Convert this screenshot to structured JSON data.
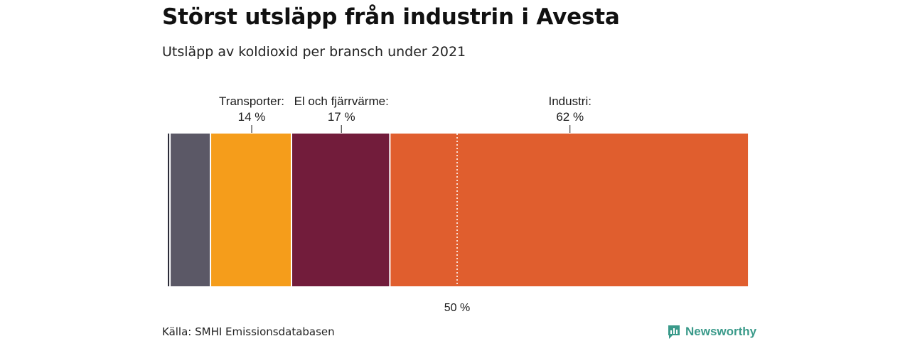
{
  "title": "Störst utsläpp från industrin i Avesta",
  "subtitle": "Utsläpp av koldioxid per bransch under 2021",
  "source": "Källa: SMHI Emissionsdatabasen",
  "brand": {
    "name": "Newsworthy",
    "icon": "newsworthy-logo-icon",
    "color": "#3a9a8a"
  },
  "chart_data": {
    "type": "bar",
    "orientation": "horizontal-stacked",
    "unit": "%",
    "xlim": [
      0,
      100
    ],
    "reference_line": {
      "value": 50,
      "label": "50 %"
    },
    "segments": [
      {
        "name": "",
        "value": 0.5,
        "color": "#2b2b38",
        "label": "",
        "value_label": ""
      },
      {
        "name": "",
        "value": 7,
        "color": "#5b5866",
        "label": "",
        "value_label": ""
      },
      {
        "name": "Transporter",
        "value": 14,
        "color": "#f59d1b",
        "label": "Transporter:",
        "value_label": "14 %"
      },
      {
        "name": "El och fjärrvärme",
        "value": 17,
        "color": "#721c3b",
        "label": "El och fjärrvärme:",
        "value_label": "17 %"
      },
      {
        "name": "Industri",
        "value": 62,
        "color": "#e05e2e",
        "label": "Industri:",
        "value_label": "62 %"
      }
    ]
  }
}
